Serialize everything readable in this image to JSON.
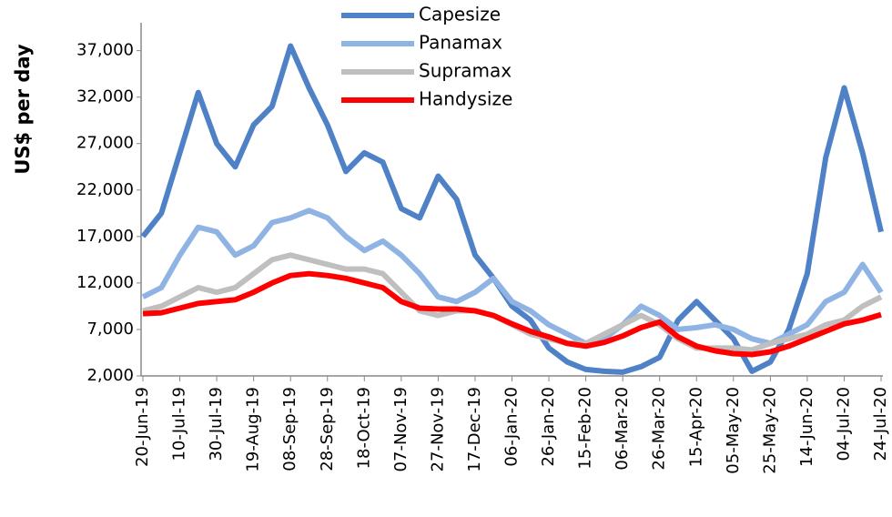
{
  "chart_data": {
    "type": "line",
    "y_label": "US$ per day",
    "categories": [
      "20-Jun-19",
      null,
      "10-Jul-19",
      null,
      "30-Jul-19",
      null,
      "19-Aug-19",
      null,
      "08-Sep-19",
      null,
      "28-Sep-19",
      null,
      "18-Oct-19",
      null,
      "07-Nov-19",
      null,
      "27-Nov-19",
      null,
      "17-Dec-19",
      null,
      "06-Jan-20",
      null,
      "26-Jan-20",
      null,
      "15-Feb-20",
      null,
      "06-Mar-20",
      null,
      "26-Mar-20",
      null,
      "15-Apr-20",
      null,
      "05-May-20",
      null,
      "25-May-20",
      null,
      "14-Jun-20",
      null,
      "04-Jul-20",
      null,
      "24-Jul-20"
    ],
    "series": [
      {
        "name": "Capesize",
        "color": "#4f81c7",
        "values": [
          17000,
          19500,
          26000,
          32500,
          27000,
          24500,
          29000,
          31000,
          37500,
          33000,
          29000,
          24000,
          26000,
          25000,
          20000,
          19000,
          23500,
          21000,
          15000,
          12500,
          9500,
          8000,
          5000,
          3500,
          2700,
          2500,
          2400,
          3000,
          4000,
          8000,
          10000,
          8000,
          6000,
          2500,
          3500,
          7000,
          13000,
          25500,
          33000,
          26000,
          17500
        ]
      },
      {
        "name": "Panamax",
        "color": "#8fb4e3",
        "values": [
          10500,
          11500,
          15000,
          18000,
          17500,
          15000,
          16000,
          18500,
          19000,
          19800,
          19000,
          17000,
          15500,
          16500,
          15000,
          13000,
          10500,
          10000,
          11000,
          12500,
          10000,
          9000,
          7500,
          6500,
          5500,
          6000,
          7500,
          9500,
          8500,
          7000,
          7200,
          7500,
          7000,
          6000,
          5500,
          6500,
          7500,
          10000,
          11000,
          14000,
          11000
        ]
      },
      {
        "name": "Supramax",
        "color": "#bfbfbf",
        "values": [
          9000,
          9500,
          10500,
          11500,
          11000,
          11500,
          13000,
          14500,
          15000,
          14500,
          14000,
          13500,
          13500,
          13000,
          11000,
          9000,
          8500,
          9000,
          9000,
          8500,
          7500,
          6500,
          6000,
          5500,
          5500,
          6500,
          7500,
          8500,
          7500,
          6000,
          5000,
          5000,
          5000,
          4800,
          5500,
          6000,
          6500,
          7500,
          8000,
          9500,
          10500
        ]
      },
      {
        "name": "Handysize",
        "color": "#ff0000",
        "values": [
          8700,
          8800,
          9300,
          9800,
          10000,
          10200,
          11000,
          12000,
          12800,
          13000,
          12800,
          12500,
          12000,
          11500,
          10000,
          9300,
          9200,
          9200,
          9000,
          8500,
          7600,
          6800,
          6200,
          5500,
          5200,
          5600,
          6300,
          7200,
          7800,
          6200,
          5200,
          4700,
          4400,
          4300,
          4600,
          5200,
          6000,
          6800,
          7600,
          8000,
          8600
        ]
      }
    ],
    "ylim": [
      2000,
      40000
    ],
    "yticks": [
      {
        "value": 2000,
        "label": "2,000"
      },
      {
        "value": 7000,
        "label": "7,000"
      },
      {
        "value": 12000,
        "label": "12,000"
      },
      {
        "value": 17000,
        "label": "17,000"
      },
      {
        "value": 22000,
        "label": "22,000"
      },
      {
        "value": 27000,
        "label": "27,000"
      },
      {
        "value": 32000,
        "label": "32,000"
      },
      {
        "value": 37000,
        "label": "37,000"
      }
    ],
    "legend": "top"
  }
}
